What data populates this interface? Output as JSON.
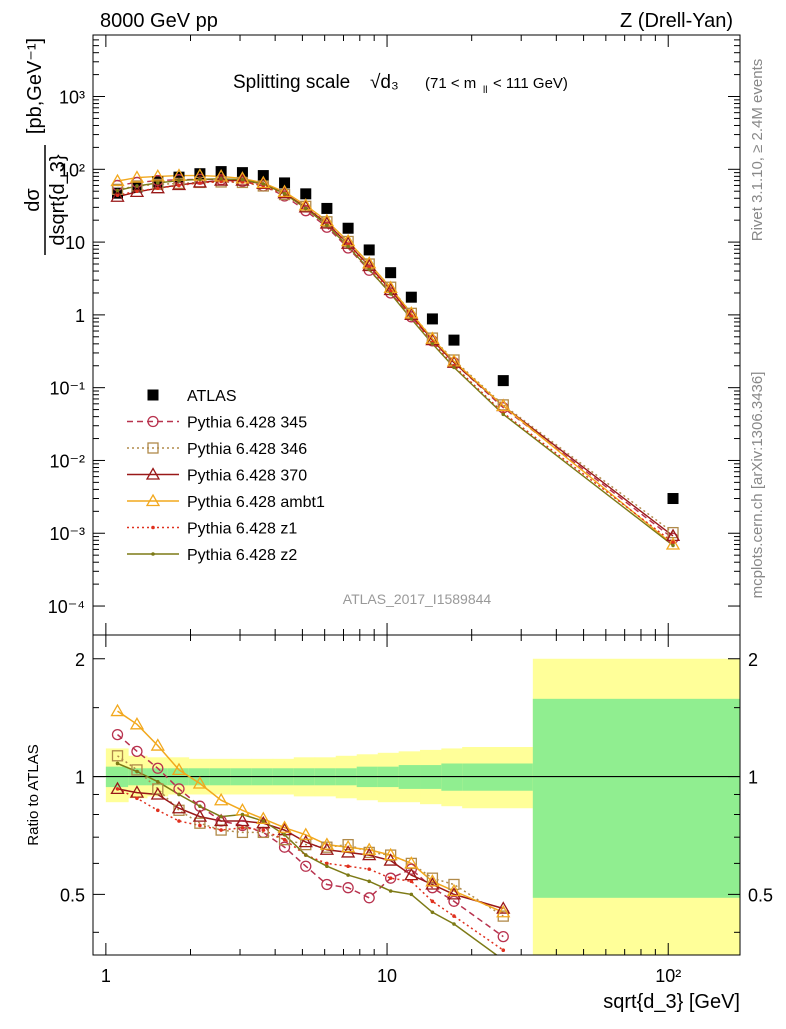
{
  "header": {
    "energy_label": "8000 GeV pp",
    "process_label": "Z (Drell-Yan)"
  },
  "side": {
    "rivet": "Rivet 3.1.10, ≥ 2.4M events",
    "mcplots": "mcplots.cern.ch [arXiv:1306.3436]"
  },
  "colors": {
    "atlas": "#000000",
    "p345": "#b8324e",
    "p346": "#b08a4a",
    "p370": "#991818",
    "ambt1": "#f2a81d",
    "z1": "#e0301e",
    "z2": "#7d7a16",
    "band_inner": "#90ee90",
    "band_outer": "#ffff99"
  },
  "chart_data": [
    {
      "type": "scatter",
      "title": "Splitting scale",
      "title_symbol": "√d₃",
      "title_range": "(71 < m",
      "title_sub": "ll",
      "title_range_end": " < 111 GeV)",
      "ylabel_num": "dσ",
      "ylabel_den": "dsqrt{d_3}",
      "ylabel_unit": "[pb,GeV⁻¹]",
      "xscale": "log",
      "yscale": "log",
      "xlim": [
        0.9,
        180
      ],
      "ylim": [
        4e-05,
        7000
      ],
      "ytick_labels": [
        "10⁻⁴",
        "10⁻³",
        "10⁻²",
        "10⁻¹",
        "1",
        "10",
        "10²",
        "10³"
      ],
      "watermark": "ATLAS_2017_I1589844",
      "legend_position": "left-middle",
      "series": [
        {
          "name": "ATLAS",
          "key": "atlas",
          "x": [
            1.1,
            1.29,
            1.53,
            1.82,
            2.16,
            2.57,
            3.06,
            3.63,
            4.32,
            5.14,
            6.11,
            7.27,
            8.64,
            10.3,
            12.2,
            14.5,
            17.3,
            25.9,
            104
          ],
          "y": [
            47,
            57,
            67,
            78,
            87,
            93,
            90,
            82,
            65,
            46,
            29,
            15.5,
            7.8,
            3.8,
            1.75,
            0.88,
            0.45,
            0.125,
            0.003
          ]
        },
        {
          "name": "Pythia 6.428 345",
          "key": "p345",
          "x": [
            1.1,
            1.29,
            1.53,
            1.82,
            2.16,
            2.57,
            3.06,
            3.63,
            4.32,
            5.14,
            6.11,
            7.27,
            8.64,
            10.3,
            12.2,
            14.5,
            17.3,
            25.9,
            104
          ],
          "y": [
            60,
            66,
            70,
            72,
            73,
            72,
            68,
            59,
            43,
            27,
            16,
            8.3,
            4.1,
            2.0,
            0.94,
            0.44,
            0.22,
            0.053,
            0.00085
          ]
        },
        {
          "name": "Pythia 6.428 346",
          "key": "p346",
          "x": [
            1.1,
            1.29,
            1.53,
            1.82,
            2.16,
            2.57,
            3.06,
            3.63,
            4.32,
            5.14,
            6.11,
            7.27,
            8.64,
            10.3,
            12.2,
            14.5,
            17.3,
            25.9,
            104
          ],
          "y": [
            53,
            59,
            62,
            64,
            66,
            67,
            66,
            59,
            45,
            31,
            19,
            10.2,
            5.0,
            2.4,
            1.05,
            0.48,
            0.24,
            0.058,
            0.00102
          ]
        },
        {
          "name": "Pythia 6.428 370",
          "key": "p370",
          "x": [
            1.1,
            1.29,
            1.53,
            1.82,
            2.16,
            2.57,
            3.06,
            3.63,
            4.32,
            5.14,
            6.11,
            7.27,
            8.64,
            10.3,
            12.2,
            14.5,
            17.3,
            25.9,
            104
          ],
          "y": [
            42,
            49,
            55,
            61,
            66,
            70,
            70,
            63,
            47,
            30,
            18,
            9.5,
            4.7,
            2.2,
            1.0,
            0.45,
            0.22,
            0.056,
            0.00092
          ]
        },
        {
          "name": "Pythia 6.428 ambt1",
          "key": "ambt1",
          "x": [
            1.1,
            1.29,
            1.53,
            1.82,
            2.16,
            2.57,
            3.06,
            3.63,
            4.32,
            5.14,
            6.11,
            7.27,
            8.64,
            10.3,
            12.2,
            14.5,
            17.3,
            25.9,
            104
          ],
          "y": [
            69,
            77,
            80,
            82,
            82,
            80,
            75,
            65,
            49,
            32,
            19.5,
            10.3,
            5.1,
            2.35,
            1.05,
            0.47,
            0.23,
            0.056,
            0.0007
          ]
        },
        {
          "name": "Pythia 6.428 z1",
          "key": "z1",
          "x": [
            1.1,
            1.29,
            1.53,
            1.82,
            2.16,
            2.57,
            3.06,
            3.63,
            4.32,
            5.14,
            6.11,
            7.27,
            8.64,
            10.3,
            12.2,
            14.5,
            17.3,
            25.9,
            104
          ],
          "y": [
            44,
            50,
            55,
            60,
            65,
            68,
            67,
            60,
            45,
            29,
            17.5,
            9.2,
            4.5,
            2.1,
            0.95,
            0.42,
            0.2,
            0.045,
            0.00075
          ]
        },
        {
          "name": "Pythia 6.428 z2",
          "key": "z2",
          "x": [
            1.1,
            1.29,
            1.53,
            1.82,
            2.16,
            2.57,
            3.06,
            3.63,
            4.32,
            5.14,
            6.11,
            7.27,
            8.64,
            10.3,
            12.2,
            14.5,
            17.3,
            25.9,
            104
          ],
          "y": [
            51,
            59,
            65,
            70,
            73,
            74,
            72,
            63,
            46,
            29,
            17,
            8.7,
            4.2,
            1.95,
            0.88,
            0.4,
            0.19,
            0.043,
            0.00068
          ]
        }
      ]
    },
    {
      "type": "line",
      "ylabel": "Ratio to ATLAS",
      "xlabel": "sqrt{d_3} [GeV]",
      "xscale": "log",
      "xlim": [
        0.9,
        180
      ],
      "ylim": [
        0.35,
        2.3
      ],
      "yscale": "log",
      "xtick_labels": [
        "1",
        "10",
        "10²"
      ],
      "ytick_labels": [
        "0.5",
        "1",
        "2"
      ],
      "reference": 1,
      "bands": {
        "edges": [
          1.0,
          1.2,
          1.4,
          1.66,
          1.97,
          2.34,
          2.78,
          3.3,
          3.92,
          4.66,
          5.53,
          6.57,
          7.8,
          9.27,
          11.0,
          13.1,
          15.6,
          18.5,
          33,
          180
        ],
        "inner_lo": [
          0.94,
          0.95,
          0.95,
          0.95,
          0.95,
          0.95,
          0.95,
          0.95,
          0.95,
          0.95,
          0.95,
          0.95,
          0.94,
          0.94,
          0.93,
          0.93,
          0.92,
          0.92,
          0.49
        ],
        "inner_hi": [
          1.06,
          1.05,
          1.05,
          1.05,
          1.05,
          1.05,
          1.05,
          1.05,
          1.05,
          1.05,
          1.05,
          1.05,
          1.06,
          1.06,
          1.07,
          1.07,
          1.08,
          1.08,
          1.58
        ],
        "outer_lo": [
          0.86,
          0.88,
          0.89,
          0.9,
          0.9,
          0.9,
          0.9,
          0.9,
          0.9,
          0.89,
          0.89,
          0.88,
          0.87,
          0.86,
          0.86,
          0.85,
          0.84,
          0.83,
          0.3
        ],
        "outer_hi": [
          1.18,
          1.13,
          1.12,
          1.12,
          1.11,
          1.11,
          1.11,
          1.11,
          1.11,
          1.12,
          1.12,
          1.13,
          1.14,
          1.15,
          1.16,
          1.17,
          1.18,
          1.19,
          2.0
        ]
      },
      "series": [
        {
          "name": "Pythia 6.428 345",
          "key": "p345",
          "x": [
            1.1,
            1.29,
            1.53,
            1.82,
            2.16,
            2.57,
            3.06,
            3.63,
            4.32,
            5.14,
            6.11,
            7.27,
            8.64,
            10.3,
            12.2,
            14.5,
            17.3,
            25.9
          ],
          "y": [
            1.28,
            1.16,
            1.05,
            0.93,
            0.84,
            0.77,
            0.75,
            0.72,
            0.66,
            0.59,
            0.53,
            0.52,
            0.49,
            0.55,
            0.58,
            0.52,
            0.48,
            0.39
          ]
        },
        {
          "name": "Pythia 6.428 346",
          "key": "p346",
          "x": [
            1.1,
            1.29,
            1.53,
            1.82,
            2.16,
            2.57,
            3.06,
            3.63,
            4.32,
            5.14,
            6.11,
            7.27,
            8.64,
            10.3,
            12.2,
            14.5,
            17.3,
            25.9
          ],
          "y": [
            1.13,
            1.04,
            0.93,
            0.82,
            0.76,
            0.73,
            0.72,
            0.72,
            0.69,
            0.67,
            0.66,
            0.67,
            0.64,
            0.63,
            0.6,
            0.55,
            0.53,
            0.44
          ]
        },
        {
          "name": "Pythia 6.428 370",
          "key": "p370",
          "x": [
            1.1,
            1.29,
            1.53,
            1.82,
            2.16,
            2.57,
            3.06,
            3.63,
            4.32,
            5.14,
            6.11,
            7.27,
            8.64,
            10.3,
            12.2,
            14.5,
            17.3,
            25.9
          ],
          "y": [
            0.93,
            0.91,
            0.9,
            0.83,
            0.79,
            0.77,
            0.77,
            0.76,
            0.73,
            0.68,
            0.65,
            0.64,
            0.63,
            0.61,
            0.56,
            0.53,
            0.5,
            0.46
          ]
        },
        {
          "name": "Pythia 6.428 ambt1",
          "key": "ambt1",
          "x": [
            1.1,
            1.29,
            1.53,
            1.82,
            2.16,
            2.57,
            3.06,
            3.63,
            4.32,
            5.14,
            6.11,
            7.27,
            8.64,
            10.3,
            12.2,
            14.5,
            17.3,
            25.9
          ],
          "y": [
            1.47,
            1.36,
            1.2,
            1.04,
            0.96,
            0.87,
            0.82,
            0.78,
            0.74,
            0.71,
            0.67,
            0.66,
            0.65,
            0.63,
            0.6,
            0.54,
            0.51,
            0.45
          ]
        },
        {
          "name": "Pythia 6.428 z1",
          "key": "z1",
          "x": [
            1.1,
            1.29,
            1.53,
            1.82,
            2.16,
            2.57,
            3.06,
            3.63,
            4.32,
            5.14,
            6.11,
            7.27,
            8.64,
            10.3,
            12.2,
            14.5,
            17.3,
            25.9
          ],
          "y": [
            0.93,
            0.88,
            0.82,
            0.77,
            0.75,
            0.73,
            0.74,
            0.73,
            0.69,
            0.63,
            0.6,
            0.59,
            0.58,
            0.55,
            0.54,
            0.48,
            0.44,
            0.36
          ]
        },
        {
          "name": "Pythia 6.428 z2",
          "key": "z2",
          "x": [
            1.1,
            1.29,
            1.53,
            1.82,
            2.16,
            2.57,
            3.06,
            3.63,
            4.32,
            5.14,
            6.11,
            7.27,
            8.64,
            10.3,
            12.2,
            14.5,
            17.3,
            25.9
          ],
          "y": [
            1.08,
            1.03,
            0.97,
            0.9,
            0.84,
            0.79,
            0.8,
            0.77,
            0.71,
            0.63,
            0.59,
            0.56,
            0.54,
            0.51,
            0.5,
            0.45,
            0.42,
            0.34
          ]
        }
      ]
    }
  ]
}
